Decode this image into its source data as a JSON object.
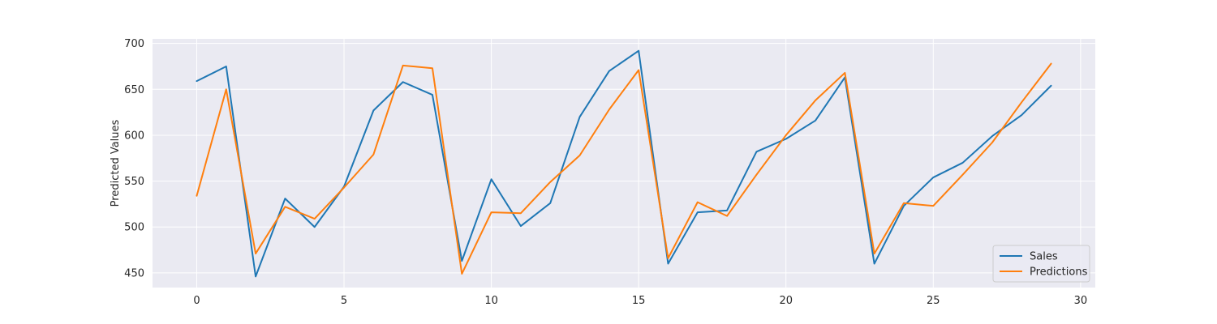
{
  "chart_data": {
    "type": "line",
    "title": "",
    "xlabel": "",
    "ylabel": "Predicted Values",
    "xlim": [
      -1.5,
      30.5
    ],
    "ylim": [
      434,
      705
    ],
    "x_ticks": [
      0,
      5,
      10,
      15,
      20,
      25,
      30
    ],
    "y_ticks": [
      450,
      500,
      550,
      600,
      650,
      700
    ],
    "grid": true,
    "legend_position": "bottom-right",
    "colors": {
      "background": "#eaeaf2",
      "grid": "#ffffff",
      "text": "#262626"
    },
    "x": [
      0,
      1,
      2,
      3,
      4,
      5,
      6,
      7,
      8,
      9,
      10,
      11,
      12,
      13,
      14,
      15,
      16,
      17,
      18,
      19,
      20,
      21,
      22,
      23,
      24,
      25,
      26,
      27,
      28,
      29
    ],
    "series": [
      {
        "name": "Sales",
        "color": "#1f77b4",
        "values": [
          659,
          675,
          446,
          531,
          500,
          544,
          627,
          658,
          644,
          463,
          552,
          501,
          526,
          620,
          670,
          692,
          460,
          516,
          518,
          582,
          596,
          616,
          663,
          460,
          523,
          554,
          570,
          599,
          622,
          654
        ]
      },
      {
        "name": "Predictions",
        "color": "#ff7f0e",
        "values": [
          534,
          650,
          471,
          522,
          509,
          543,
          579,
          676,
          673,
          449,
          516,
          515,
          549,
          578,
          628,
          671,
          466,
          527,
          512,
          557,
          600,
          638,
          668,
          471,
          526,
          523,
          557,
          592,
          636,
          678
        ]
      }
    ]
  }
}
